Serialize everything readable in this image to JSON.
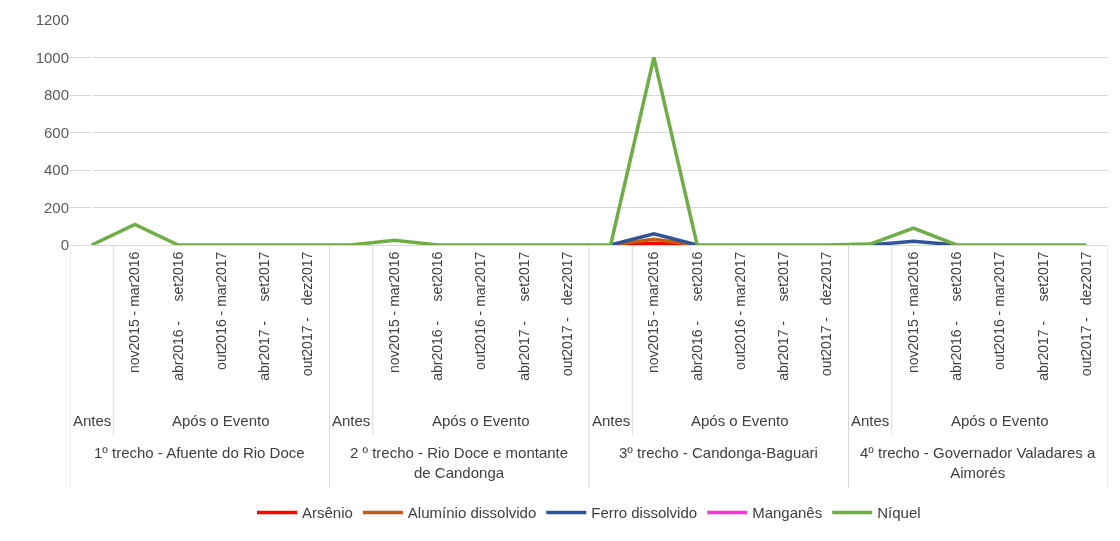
{
  "chart_data": {
    "type": "line",
    "categories": [
      null,
      "nov2015 - mar2016",
      "abr2016 -     set2016",
      "out2016 - mar2017",
      "abr2017 -     set2017",
      "out2017 -   dez2017",
      null,
      "nov2015 - mar2016",
      "abr2016 -     set2016",
      "out2016 - mar2017",
      "abr2017 -     set2017",
      "out2017 -   dez2017",
      null,
      "nov2015 - mar2016",
      "abr2016 -     set2016",
      "out2016 - mar2017",
      "abr2017 -     set2017",
      "out2017 -   dez2017",
      null,
      "nov2015 - mar2016",
      "abr2016 -     set2016",
      "out2016 - mar2017",
      "abr2017 -     set2017",
      "out2017 -   dez2017"
    ],
    "series": [
      {
        "name": "Arsênio",
        "color": "#ff0000",
        "values": [
          null,
          null,
          null,
          null,
          null,
          null,
          null,
          null,
          null,
          null,
          null,
          null,
          0,
          10,
          0,
          null,
          null,
          null,
          null,
          null,
          null,
          null,
          null,
          null
        ]
      },
      {
        "name": "Alumínio dissolvido",
        "color": "#c55a11",
        "values": [
          null,
          null,
          null,
          null,
          null,
          null,
          null,
          null,
          null,
          null,
          null,
          null,
          0,
          30,
          0,
          null,
          null,
          null,
          null,
          null,
          null,
          null,
          null,
          null
        ]
      },
      {
        "name": "Ferro dissolvido",
        "color": "#2f5597",
        "values": [
          null,
          null,
          null,
          null,
          null,
          null,
          null,
          null,
          null,
          null,
          null,
          null,
          0,
          60,
          0,
          null,
          null,
          null,
          0,
          20,
          0,
          null,
          null,
          null
        ]
      },
      {
        "name": "Manganês",
        "color": "#ff33cc",
        "values": [
          null,
          null,
          null,
          null,
          null,
          null,
          null,
          null,
          null,
          null,
          null,
          null,
          null,
          null,
          null,
          null,
          null,
          null,
          null,
          null,
          null,
          null,
          null,
          null
        ]
      },
      {
        "name": "Níquel",
        "color": "#70ad47",
        "values": [
          0,
          110,
          0,
          0,
          0,
          0,
          0,
          25,
          0,
          0,
          0,
          0,
          0,
          1000,
          0,
          0,
          0,
          0,
          5,
          90,
          0,
          0,
          0,
          0
        ]
      }
    ],
    "ylim": [
      0,
      1200
    ],
    "yticks": [
      0,
      200,
      400,
      600,
      800,
      1000,
      1200
    ],
    "grid": "y",
    "legend": "bottom",
    "marker": "none",
    "line_style": "solid",
    "annotations": [
      "Antes",
      "Após o Evento",
      "1º trecho - Afuente do Rio Doce",
      "Antes",
      "Após o Evento",
      "2 º trecho - Rio Doce e montante de Candonga",
      "Antes",
      "Após o Evento",
      "3º trecho - Candonga-Baguari",
      "Antes",
      "Após o Evento",
      "4º trecho - Governador Valadares a Aimorés"
    ]
  }
}
